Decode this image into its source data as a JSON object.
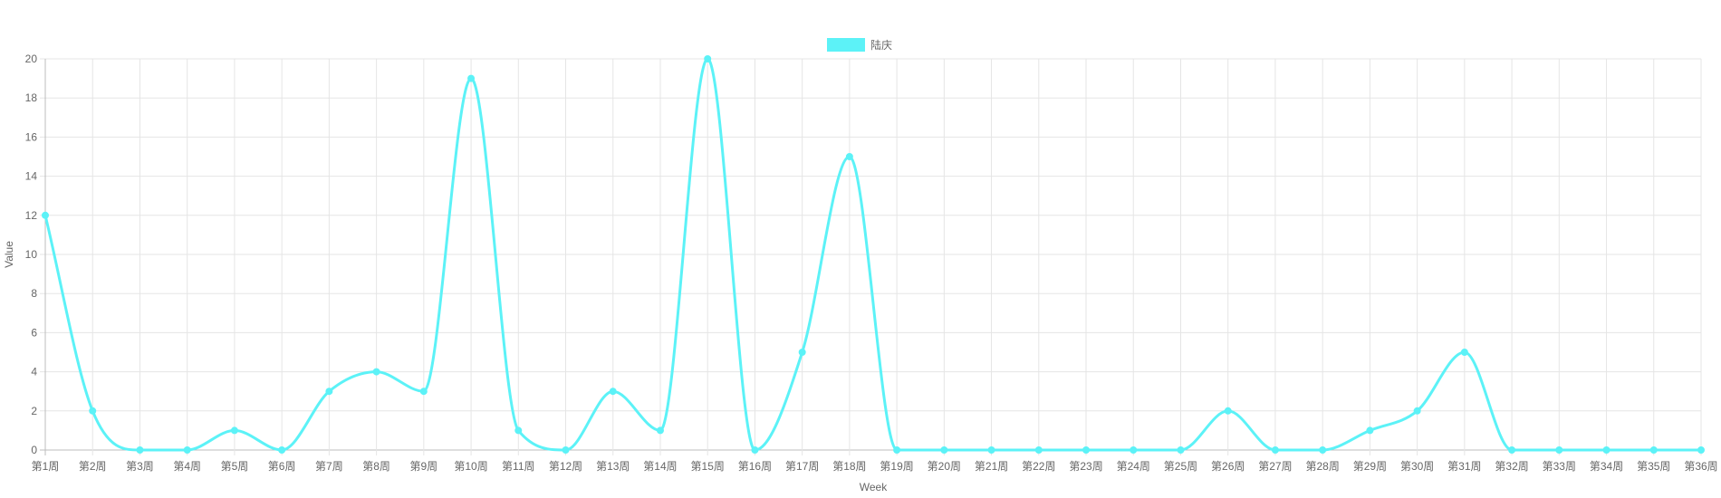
{
  "chart_data": {
    "type": "line",
    "categories": [
      "第1周",
      "第2周",
      "第3周",
      "第4周",
      "第5周",
      "第6周",
      "第7周",
      "第8周",
      "第9周",
      "第10周",
      "第11周",
      "第12周",
      "第13周",
      "第14周",
      "第15周",
      "第16周",
      "第17周",
      "第18周",
      "第19周",
      "第20周",
      "第21周",
      "第22周",
      "第23周",
      "第24周",
      "第25周",
      "第26周",
      "第27周",
      "第28周",
      "第29周",
      "第30周",
      "第31周",
      "第32周",
      "第33周",
      "第34周",
      "第35周",
      "第36周"
    ],
    "series": [
      {
        "name": "陆庆",
        "values": [
          12,
          2,
          0,
          0,
          1,
          0,
          3,
          4,
          3,
          19,
          1,
          0,
          3,
          1,
          20,
          0,
          5,
          15,
          0,
          0,
          0,
          0,
          0,
          0,
          0,
          2,
          0,
          0,
          1,
          2,
          5,
          0,
          0,
          0,
          0,
          0
        ],
        "color": "#5cf2f7"
      }
    ],
    "title": "",
    "xlabel": "Week",
    "ylabel": "Value",
    "ylim": [
      0,
      20
    ],
    "yticks": [
      0,
      2,
      4,
      6,
      8,
      10,
      12,
      14,
      16,
      18,
      20
    ],
    "grid": true,
    "legend_position": "top-center",
    "colors": {
      "grid": "#e5e5e5",
      "axis": "#bdbdbd"
    }
  }
}
